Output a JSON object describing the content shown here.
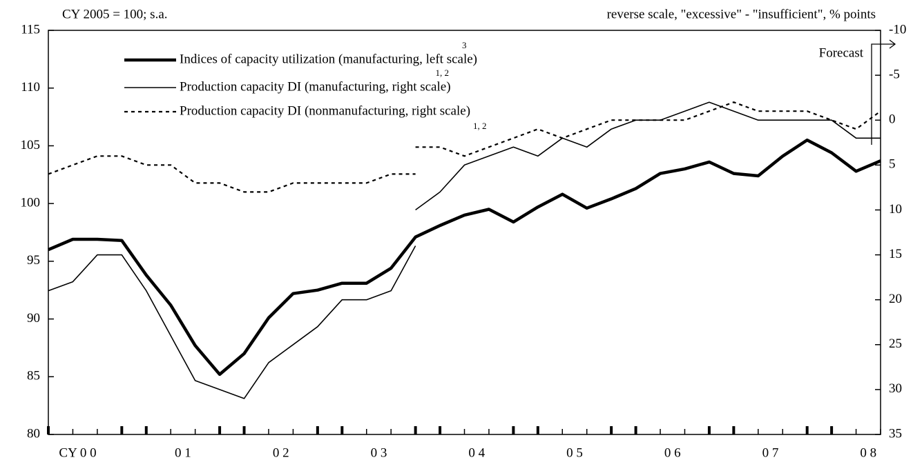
{
  "chart_data": {
    "type": "line",
    "left_note": "CY 2005 = 100; s.a.",
    "right_note": "reverse scale, \"excessive\" - \"insufficient\", % points",
    "annotation": "Forecast",
    "categories": [
      "CY 0 0",
      null,
      null,
      null,
      "0 1",
      null,
      null,
      null,
      "0 2",
      null,
      null,
      null,
      "0 3",
      null,
      null,
      null,
      "0 4",
      null,
      null,
      null,
      "0 5",
      null,
      null,
      null,
      "0 6",
      null,
      null,
      null,
      "0 7",
      null,
      null,
      null,
      "0 8",
      null,
      null
    ],
    "ylim": [
      80,
      115
    ],
    "yticks": [
      80,
      85,
      90,
      95,
      100,
      105,
      110,
      115
    ],
    "y2lim": [
      35,
      -10
    ],
    "y2ticks": [
      35,
      30,
      25,
      20,
      15,
      10,
      5,
      0,
      -5,
      -10
    ],
    "series": [
      {
        "name": "Indices of capacity utilization (manufacturing, left scale)",
        "note": "3",
        "color": "#000000",
        "style": "thick",
        "axis": "y",
        "values": [
          96,
          96.9,
          96.9,
          96.8,
          93.8,
          91.2,
          87.7,
          85.2,
          87.0,
          90.1,
          92.2,
          92.5,
          93.1,
          93.1,
          94.4,
          97.1,
          98.1,
          99.0,
          99.5,
          98.4,
          99.7,
          100.8,
          99.6,
          100.4,
          101.3,
          102.6,
          103.0,
          103.6,
          102.6,
          102.4,
          104.1,
          105.5,
          104.4,
          102.8,
          103.7
        ]
      },
      {
        "name": "Production capacity DI (manufacturing, right scale)",
        "note": "1, 2",
        "color": "#000000",
        "style": "thin",
        "axis": "y2",
        "values": [
          19,
          18,
          15,
          15,
          19,
          24,
          29,
          30,
          31,
          27,
          25,
          23,
          20,
          20,
          19,
          14,
          null,
          null,
          null,
          null,
          null,
          null,
          null,
          null,
          null,
          null,
          null,
          null,
          null,
          null,
          null,
          null,
          null,
          null,
          null
        ],
        "values_new": [
          null,
          null,
          null,
          null,
          null,
          null,
          null,
          null,
          null,
          null,
          null,
          null,
          null,
          null,
          null,
          10,
          8,
          5,
          4,
          3,
          4,
          2,
          3,
          1,
          0,
          0,
          -1,
          -2,
          -1,
          0,
          0,
          0,
          0,
          2,
          2
        ]
      },
      {
        "name": "Production capacity DI (nonmanufacturing, right scale)",
        "note": "1, 2",
        "color": "#000000",
        "style": "dotted",
        "axis": "y2",
        "values": [
          6,
          5,
          4,
          4,
          5,
          5,
          7,
          7,
          8,
          8,
          7,
          7,
          7,
          7,
          6,
          6,
          null,
          null,
          null,
          null,
          null,
          null,
          null,
          null,
          null,
          null,
          null,
          null,
          null,
          null,
          null,
          null,
          null,
          null,
          null
        ],
        "values_new": [
          null,
          null,
          null,
          null,
          null,
          null,
          null,
          null,
          null,
          null,
          null,
          null,
          null,
          null,
          null,
          3,
          3,
          4,
          3,
          2,
          1,
          2,
          1,
          0,
          0,
          0,
          0,
          -1,
          -2,
          -1,
          -1,
          -1,
          0,
          1,
          -1
        ]
      }
    ]
  }
}
